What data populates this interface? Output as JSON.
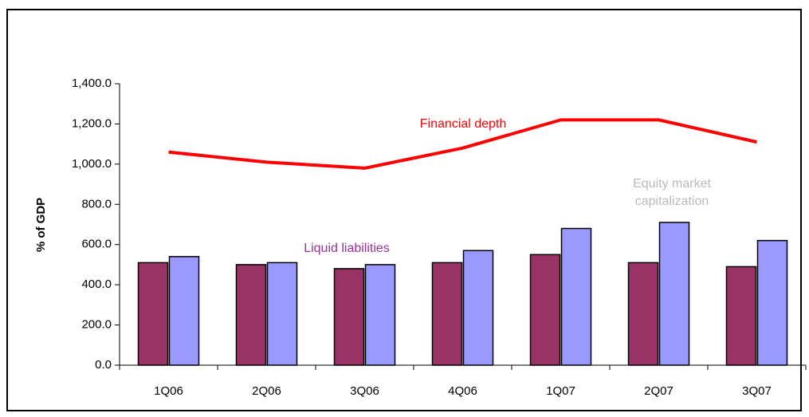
{
  "chart_data": {
    "type": "bar",
    "y_label": "% of GDP",
    "categories": [
      "1Q06",
      "2Q06",
      "3Q06",
      "4Q06",
      "1Q07",
      "2Q07",
      "3Q07"
    ],
    "series": [
      {
        "name": "Liquid liabilities",
        "type": "bar",
        "color": "#993366",
        "label_color": "#993399",
        "values": [
          510,
          500,
          480,
          510,
          550,
          510,
          490
        ]
      },
      {
        "name": "Equity market capitalization",
        "type": "bar",
        "color": "#9999ff",
        "label_color": "#bbbbbb",
        "values": [
          540,
          510,
          500,
          570,
          680,
          710,
          620
        ]
      },
      {
        "name": "Financial depth",
        "type": "line",
        "color": "#ff0000",
        "label_color": "#ff0000",
        "values": [
          1060,
          1010,
          980,
          1080,
          1220,
          1220,
          1110
        ]
      }
    ],
    "ylim": [
      0,
      1400
    ],
    "yticks": [
      {
        "value": 0,
        "label": "0.0"
      },
      {
        "value": 200,
        "label": "200.0"
      },
      {
        "value": 400,
        "label": "400.0"
      },
      {
        "value": 600,
        "label": "600.0"
      },
      {
        "value": 800,
        "label": "800.0"
      },
      {
        "value": 1000,
        "label": "1,000.0"
      },
      {
        "value": 1200,
        "label": "1,200.0"
      },
      {
        "value": 1400,
        "label": "1,400.0"
      }
    ],
    "grid": false
  }
}
